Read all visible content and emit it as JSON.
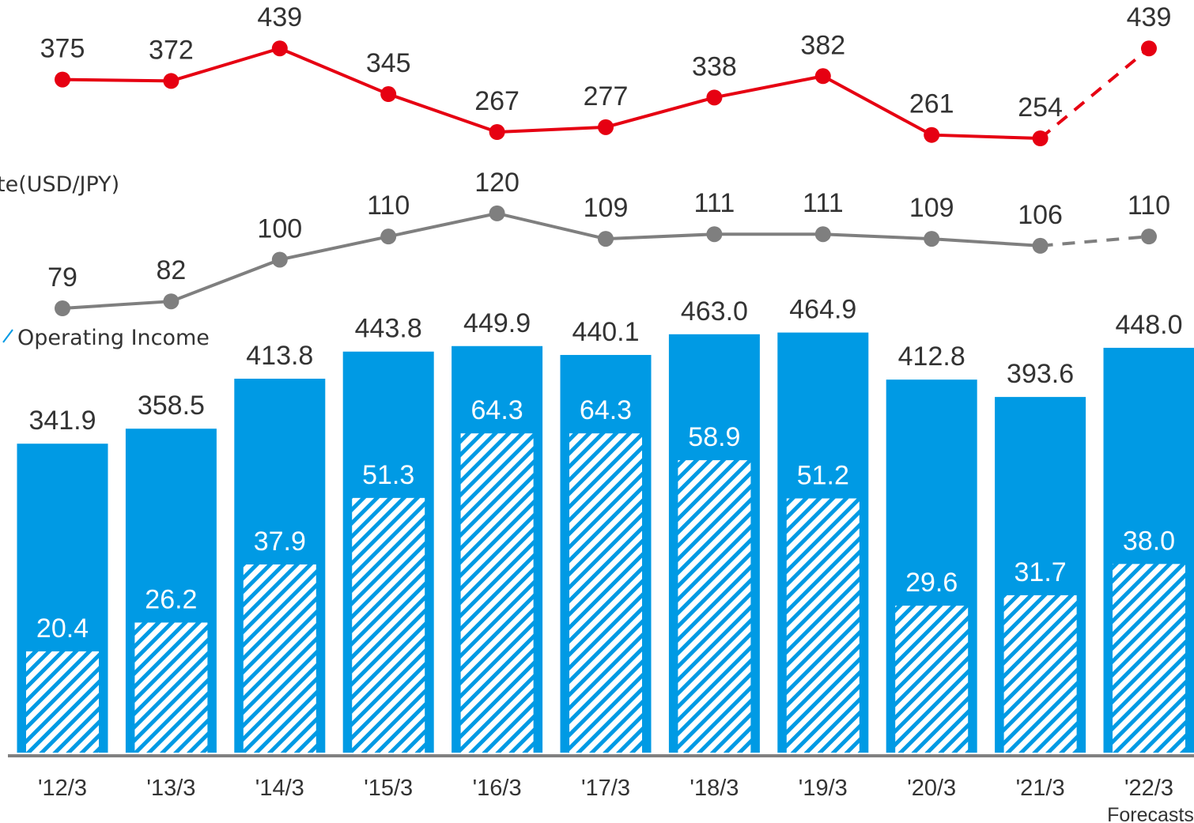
{
  "chart_data": {
    "type": "bar",
    "categories": [
      "'12/3",
      "'13/3",
      "'14/3",
      "'15/3",
      "'16/3",
      "'17/3",
      "'18/3",
      "'19/3",
      "'20/3",
      "'21/3",
      "'22/3"
    ],
    "series": [
      {
        "values": [
          341.9,
          358.5,
          413.8,
          443.8,
          449.9,
          440.1,
          463.0,
          464.9,
          412.8,
          393.6,
          448.0
        ],
        "color": "#009ae4"
      },
      {
        "name": "Operating Income",
        "values": [
          20.4,
          26.2,
          37.9,
          51.3,
          64.3,
          64.3,
          58.9,
          51.2,
          29.6,
          31.7,
          38.0
        ],
        "color": "#009ae4",
        "pattern": "diagonal-hatch"
      },
      {
        "values": [
          375,
          372,
          439,
          345,
          267,
          277,
          338,
          382,
          261,
          254,
          439
        ],
        "color": "#e60012",
        "line": true
      },
      {
        "name": "te(USD/JPY)",
        "values": [
          79,
          82,
          100,
          110,
          120,
          109,
          111,
          111,
          109,
          106,
          110
        ],
        "color": "#7f7f7f",
        "line": true
      }
    ],
    "forecast_category": "'22/3",
    "forecast_note": "Forecasts",
    "legend_labels": {
      "operating_income": "Operating Income",
      "exchange_rate": "te(USD/JPY)"
    },
    "axis_color": "#808080"
  }
}
